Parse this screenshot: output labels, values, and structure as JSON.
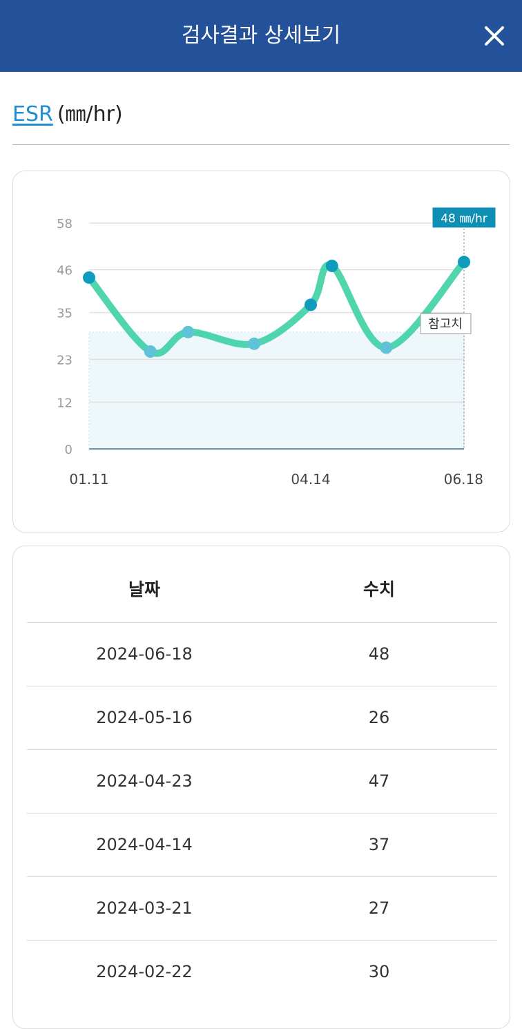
{
  "header": {
    "title": "검사결과 상세보기",
    "close_icon": "close-icon"
  },
  "test": {
    "name": "ESR",
    "unit_label": "(㎜/hr)"
  },
  "chart_data": {
    "type": "line",
    "x": [
      "2024-01-11",
      "2024-02-06",
      "2024-02-22",
      "2024-03-21",
      "2024-04-14",
      "2024-04-23",
      "2024-05-16",
      "2024-06-18"
    ],
    "values": [
      44,
      25,
      30,
      27,
      37,
      47,
      26,
      48
    ],
    "y_ticks": [
      0,
      12,
      23,
      35,
      46,
      58
    ],
    "x_tick_labels": [
      "01.11",
      "04.14",
      "06.18"
    ],
    "ylim": [
      0,
      58
    ],
    "reference_range": [
      0,
      30
    ],
    "reference_label": "참고치",
    "highlight_label": "48 ㎜/hr",
    "grid": true,
    "colors": {
      "line": "#3dd0a4",
      "points": "#0f9bbd",
      "reference_fill": "#eef7fa",
      "highlight_bg": "#0f8fb3"
    }
  },
  "table": {
    "headers": {
      "date": "날짜",
      "value": "수치"
    },
    "rows": [
      {
        "date": "2024-06-18",
        "value": "48"
      },
      {
        "date": "2024-05-16",
        "value": "26"
      },
      {
        "date": "2024-04-23",
        "value": "47"
      },
      {
        "date": "2024-04-14",
        "value": "37"
      },
      {
        "date": "2024-03-21",
        "value": "27"
      },
      {
        "date": "2024-02-22",
        "value": "30"
      }
    ]
  },
  "colors": {
    "header_bg": "#23529b",
    "link": "#1f8fd6"
  }
}
